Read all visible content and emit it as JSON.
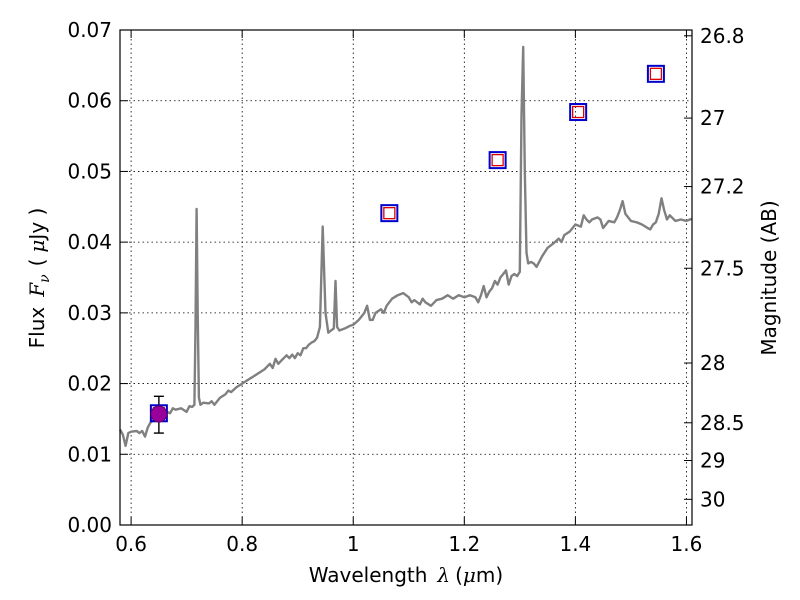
{
  "chart_data": {
    "type": "line",
    "xlabel_text": "Wavelength",
    "xlabel_symbol": "λ",
    "xlabel_unit_prefix": "(",
    "xlabel_unit_mu": "μ",
    "xlabel_unit_suffix": "m)",
    "ylabel_text": "Flux",
    "ylabel_symbol": "F",
    "ylabel_sub": "ν",
    "ylabel_unit_prefix": "(",
    "ylabel_unit_mu": "μ",
    "ylabel_unit_suffix": "Jy )",
    "y2label": "Magnitude (AB)",
    "xlim": [
      0.58,
      1.61
    ],
    "ylim": [
      0.0,
      0.07
    ],
    "grid": true,
    "x_ticks": [
      {
        "value": 0.6,
        "label": "0.6"
      },
      {
        "value": 0.8,
        "label": "0.8"
      },
      {
        "value": 1.0,
        "label": "1"
      },
      {
        "value": 1.2,
        "label": "1.2"
      },
      {
        "value": 1.4,
        "label": "1.4"
      },
      {
        "value": 1.6,
        "label": "1.6"
      }
    ],
    "y_ticks": [
      {
        "value": 0.0,
        "label": "0.00"
      },
      {
        "value": 0.01,
        "label": "0.01"
      },
      {
        "value": 0.02,
        "label": "0.02"
      },
      {
        "value": 0.03,
        "label": "0.03"
      },
      {
        "value": 0.04,
        "label": "0.04"
      },
      {
        "value": 0.05,
        "label": "0.05"
      },
      {
        "value": 0.06,
        "label": "0.06"
      },
      {
        "value": 0.07,
        "label": "0.07"
      }
    ],
    "y2_ticks": [
      {
        "value": 26.8,
        "label": "26.8"
      },
      {
        "value": 27.0,
        "label": "27"
      },
      {
        "value": 27.2,
        "label": "27.2"
      },
      {
        "value": 27.5,
        "label": "27.5"
      },
      {
        "value": 28.0,
        "label": "28"
      },
      {
        "value": 28.5,
        "label": "28.5"
      },
      {
        "value": 29.0,
        "label": "29"
      },
      {
        "value": 30.0,
        "label": "30"
      }
    ],
    "series": [
      {
        "kind": "spectrum",
        "color": "#808080",
        "points": [
          [
            0.58,
            0.0135
          ],
          [
            0.585,
            0.0128
          ],
          [
            0.59,
            0.0112
          ],
          [
            0.595,
            0.013
          ],
          [
            0.6,
            0.0132
          ],
          [
            0.61,
            0.0133
          ],
          [
            0.615,
            0.013
          ],
          [
            0.62,
            0.0133
          ],
          [
            0.625,
            0.0125
          ],
          [
            0.63,
            0.0138
          ],
          [
            0.635,
            0.0145
          ],
          [
            0.64,
            0.0148
          ],
          [
            0.645,
            0.015
          ],
          [
            0.65,
            0.0157
          ],
          [
            0.655,
            0.015
          ],
          [
            0.66,
            0.0162
          ],
          [
            0.665,
            0.016
          ],
          [
            0.67,
            0.0158
          ],
          [
            0.675,
            0.0165
          ],
          [
            0.68,
            0.0163
          ],
          [
            0.69,
            0.0165
          ],
          [
            0.7,
            0.016
          ],
          [
            0.705,
            0.0168
          ],
          [
            0.71,
            0.0167
          ],
          [
            0.714,
            0.017
          ],
          [
            0.716,
            0.028
          ],
          [
            0.718,
            0.0447
          ],
          [
            0.72,
            0.03
          ],
          [
            0.722,
            0.018
          ],
          [
            0.725,
            0.017
          ],
          [
            0.73,
            0.0173
          ],
          [
            0.74,
            0.0172
          ],
          [
            0.745,
            0.0175
          ],
          [
            0.75,
            0.017
          ],
          [
            0.76,
            0.018
          ],
          [
            0.77,
            0.0185
          ],
          [
            0.775,
            0.019
          ],
          [
            0.78,
            0.0188
          ],
          [
            0.79,
            0.0195
          ],
          [
            0.8,
            0.02
          ],
          [
            0.81,
            0.0205
          ],
          [
            0.82,
            0.021
          ],
          [
            0.83,
            0.0215
          ],
          [
            0.84,
            0.022
          ],
          [
            0.85,
            0.0228
          ],
          [
            0.855,
            0.0222
          ],
          [
            0.86,
            0.0235
          ],
          [
            0.865,
            0.0228
          ],
          [
            0.87,
            0.0232
          ],
          [
            0.88,
            0.024
          ],
          [
            0.885,
            0.0236
          ],
          [
            0.89,
            0.0241
          ],
          [
            0.895,
            0.0236
          ],
          [
            0.9,
            0.0243
          ],
          [
            0.905,
            0.024
          ],
          [
            0.91,
            0.025
          ],
          [
            0.915,
            0.025
          ],
          [
            0.92,
            0.0255
          ],
          [
            0.925,
            0.0258
          ],
          [
            0.93,
            0.026
          ],
          [
            0.935,
            0.0265
          ],
          [
            0.94,
            0.028
          ],
          [
            0.945,
            0.0422
          ],
          [
            0.95,
            0.03
          ],
          [
            0.955,
            0.0272
          ],
          [
            0.96,
            0.0275
          ],
          [
            0.965,
            0.0278
          ],
          [
            0.968,
            0.0345
          ],
          [
            0.971,
            0.028
          ],
          [
            0.975,
            0.0275
          ],
          [
            0.985,
            0.0278
          ],
          [
            0.995,
            0.0282
          ],
          [
            1.0,
            0.0283
          ],
          [
            1.01,
            0.029
          ],
          [
            1.015,
            0.0295
          ],
          [
            1.02,
            0.03
          ],
          [
            1.025,
            0.031
          ],
          [
            1.03,
            0.029
          ],
          [
            1.035,
            0.029
          ],
          [
            1.04,
            0.03
          ],
          [
            1.05,
            0.0305
          ],
          [
            1.055,
            0.03
          ],
          [
            1.06,
            0.031
          ],
          [
            1.07,
            0.032
          ],
          [
            1.08,
            0.0325
          ],
          [
            1.09,
            0.0328
          ],
          [
            1.1,
            0.0322
          ],
          [
            1.105,
            0.0315
          ],
          [
            1.11,
            0.0318
          ],
          [
            1.12,
            0.0312
          ],
          [
            1.125,
            0.032
          ],
          [
            1.13,
            0.0315
          ],
          [
            1.14,
            0.031
          ],
          [
            1.15,
            0.0318
          ],
          [
            1.16,
            0.032
          ],
          [
            1.17,
            0.0325
          ],
          [
            1.18,
            0.032
          ],
          [
            1.19,
            0.0325
          ],
          [
            1.2,
            0.0322
          ],
          [
            1.21,
            0.0325
          ],
          [
            1.22,
            0.0322
          ],
          [
            1.225,
            0.0315
          ],
          [
            1.23,
            0.0325
          ],
          [
            1.235,
            0.0338
          ],
          [
            1.24,
            0.0322
          ],
          [
            1.245,
            0.033
          ],
          [
            1.25,
            0.0335
          ],
          [
            1.255,
            0.0345
          ],
          [
            1.26,
            0.034
          ],
          [
            1.265,
            0.035
          ],
          [
            1.27,
            0.0355
          ],
          [
            1.275,
            0.036
          ],
          [
            1.28,
            0.034
          ],
          [
            1.285,
            0.0352
          ],
          [
            1.29,
            0.0355
          ],
          [
            1.295,
            0.0352
          ],
          [
            1.3,
            0.0358
          ],
          [
            1.303,
            0.058
          ],
          [
            1.306,
            0.0676
          ],
          [
            1.309,
            0.05
          ],
          [
            1.312,
            0.0385
          ],
          [
            1.315,
            0.037
          ],
          [
            1.32,
            0.0372
          ],
          [
            1.325,
            0.037
          ],
          [
            1.33,
            0.0365
          ],
          [
            1.34,
            0.038
          ],
          [
            1.35,
            0.0392
          ],
          [
            1.36,
            0.0398
          ],
          [
            1.37,
            0.0405
          ],
          [
            1.375,
            0.04
          ],
          [
            1.38,
            0.041
          ],
          [
            1.39,
            0.0415
          ],
          [
            1.395,
            0.042
          ],
          [
            1.4,
            0.0425
          ],
          [
            1.41,
            0.0422
          ],
          [
            1.415,
            0.0438
          ],
          [
            1.42,
            0.0432
          ],
          [
            1.425,
            0.0428
          ],
          [
            1.43,
            0.0432
          ],
          [
            1.44,
            0.0435
          ],
          [
            1.445,
            0.0432
          ],
          [
            1.45,
            0.042
          ],
          [
            1.455,
            0.0425
          ],
          [
            1.46,
            0.043
          ],
          [
            1.47,
            0.0428
          ],
          [
            1.475,
            0.0435
          ],
          [
            1.48,
            0.0445
          ],
          [
            1.485,
            0.0458
          ],
          [
            1.49,
            0.044
          ],
          [
            1.5,
            0.043
          ],
          [
            1.51,
            0.0428
          ],
          [
            1.52,
            0.0425
          ],
          [
            1.53,
            0.042
          ],
          [
            1.535,
            0.0418
          ],
          [
            1.54,
            0.0425
          ],
          [
            1.545,
            0.0428
          ],
          [
            1.55,
            0.044
          ],
          [
            1.555,
            0.0462
          ],
          [
            1.56,
            0.0445
          ],
          [
            1.565,
            0.0432
          ],
          [
            1.57,
            0.0438
          ],
          [
            1.58,
            0.043
          ],
          [
            1.59,
            0.0432
          ],
          [
            1.6,
            0.043
          ],
          [
            1.61,
            0.0433
          ]
        ]
      }
    ],
    "model_points": [
      {
        "x": 0.65,
        "y": 0.0158
      },
      {
        "x": 1.065,
        "y": 0.0441
      },
      {
        "x": 1.26,
        "y": 0.0516
      },
      {
        "x": 1.405,
        "y": 0.0584
      },
      {
        "x": 1.545,
        "y": 0.0638
      }
    ],
    "observed_point": {
      "x": 0.65,
      "y": 0.0157,
      "yerr_low": 0.013,
      "yerr_high": 0.0182
    },
    "colors": {
      "spectrum": "#808080",
      "outer_square": "#0000cc",
      "inner_square": "#dd0000",
      "observed": "#990099"
    }
  }
}
